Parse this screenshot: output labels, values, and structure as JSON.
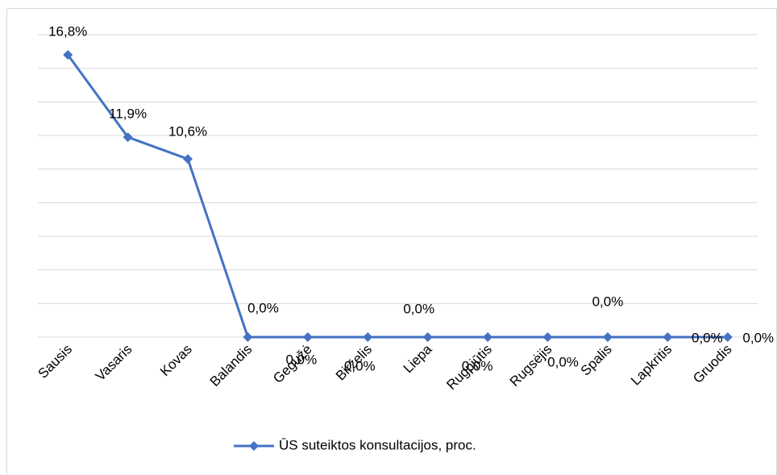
{
  "chart_data": {
    "type": "line",
    "categories": [
      "Sausis",
      "Vasaris",
      "Kovas",
      "Balandis",
      "Gegužė",
      "Birželis",
      "Liepa",
      "Rugpjūtis",
      "Rugsėjis",
      "Spalis",
      "Lapkritis",
      "Gruodis"
    ],
    "series": [
      {
        "name": "ŪS suteiktos konsultacijos, proc.",
        "color": "#4472c4",
        "values": [
          16.8,
          11.9,
          10.6,
          0,
          0,
          0,
          0,
          0,
          0,
          0,
          0,
          0
        ],
        "value_labels": [
          "16,8%",
          "11,9%",
          "10,6%",
          "0,0%",
          "0,0%",
          "0,0%",
          "0,0%",
          "0,0%",
          "0,0%",
          "0,0%",
          "0,0%",
          "0,0%"
        ]
      }
    ],
    "ylim": [
      0,
      18
    ],
    "yticks": [
      0,
      2,
      4,
      6,
      8,
      10,
      12,
      14,
      16,
      18
    ],
    "grid": true,
    "legend": "bottom"
  }
}
